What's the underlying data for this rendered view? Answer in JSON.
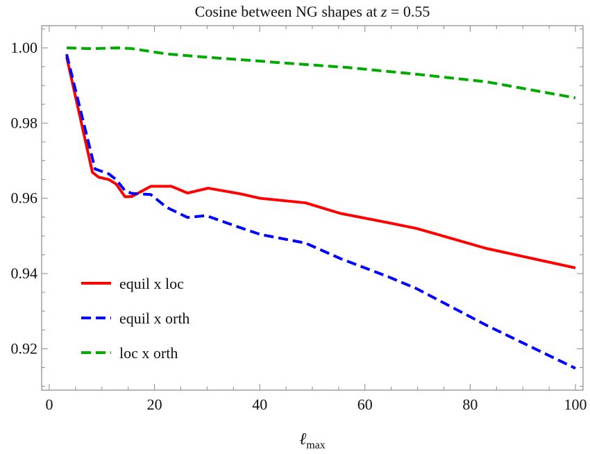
{
  "chart_data": {
    "type": "line",
    "title": "Cosine between NG shapes at z = 0.55",
    "title_italic": "z",
    "xlabel": "ℓmax",
    "xlabel_symbol": "ℓ",
    "xlabel_subscript": "max",
    "ylabel": "",
    "xlim": [
      -1.45,
      101.45
    ],
    "ylim": [
      0.909,
      1.0059
    ],
    "xticks": [
      0,
      20,
      40,
      60,
      80,
      100
    ],
    "xtick_labels": [
      "0",
      "20",
      "40",
      "60",
      "80",
      "100"
    ],
    "yticks": [
      0.92,
      0.94,
      0.96,
      0.98,
      1.0
    ],
    "ytick_labels": [
      "0.92",
      "0.94",
      "0.96",
      "0.98",
      "1.00"
    ],
    "grid": false,
    "legend_position": "bottom-left",
    "series": [
      {
        "name": "equil x loc",
        "color": "#ff0000",
        "dash": "solid",
        "x": [
          3.3,
          8.2,
          9.4,
          11.3,
          12.7,
          14.4,
          15.7,
          19.3,
          23.2,
          26.3,
          30.2,
          36.3,
          40.1,
          48.7,
          55.3,
          64.5,
          69.8,
          83,
          100
        ],
        "y": [
          0.9976,
          0.9669,
          0.9656,
          0.965,
          0.9638,
          0.9604,
          0.9605,
          0.9632,
          0.9632,
          0.9614,
          0.9627,
          0.9612,
          0.96,
          0.9588,
          0.956,
          0.9535,
          0.952,
          0.9467,
          0.9415
        ]
      },
      {
        "name": "equil x orth",
        "color": "#0000ff",
        "dash": "dashed",
        "x": [
          3.3,
          8.7,
          11.3,
          12.7,
          14.4,
          15.7,
          19.3,
          22.3,
          26.3,
          29.8,
          36.3,
          40.1,
          48.7,
          55.3,
          64.5,
          69.8,
          83,
          100
        ],
        "y": [
          0.9983,
          0.9678,
          0.9665,
          0.965,
          0.962,
          0.9613,
          0.961,
          0.9576,
          0.9549,
          0.9554,
          0.9522,
          0.9504,
          0.9481,
          0.944,
          0.9391,
          0.936,
          0.9263,
          0.9148
        ]
      },
      {
        "name": "loc x orth",
        "color": "#00aa00",
        "dash": "dashed",
        "x": [
          3.3,
          7.8,
          13,
          15.7,
          22.3,
          30,
          38.1,
          43.4,
          56.6,
          69.8,
          83,
          100
        ],
        "y": [
          1.0,
          0.9998,
          1.0,
          0.9998,
          0.9984,
          0.9975,
          0.9967,
          0.9961,
          0.9948,
          0.993,
          0.991,
          0.9867
        ]
      }
    ]
  }
}
